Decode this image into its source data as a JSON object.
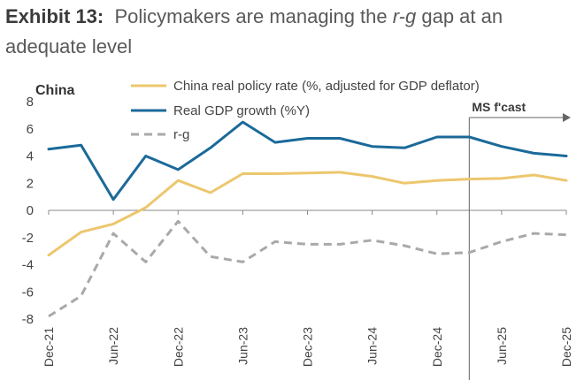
{
  "title": {
    "exhibit": "Exhibit 13:",
    "text_before": "Policymakers are managing the ",
    "term": "r-g",
    "text_after": " gap at an adequate level"
  },
  "colors": {
    "policy_rate": "#ecc76e",
    "gdp_growth": "#1b6a9a",
    "r_g": "#a9a9a9",
    "axis": "#888888",
    "forecast_line": "#666666"
  },
  "chart_data": {
    "type": "line",
    "panel_label": "China",
    "forecast_label": "MS f'cast",
    "forecast_start": "Mar-25",
    "ylim": [
      -8,
      8
    ],
    "yticks": [
      8,
      6,
      4,
      2,
      0,
      -2,
      -4,
      -6,
      -8
    ],
    "x": [
      "Dec-21",
      "Mar-22",
      "Jun-22",
      "Sep-22",
      "Dec-22",
      "Mar-23",
      "Jun-23",
      "Sep-23",
      "Dec-23",
      "Mar-24",
      "Jun-24",
      "Sep-24",
      "Dec-24",
      "Mar-25",
      "Jun-25",
      "Sep-25",
      "Dec-25"
    ],
    "xtick_labels": [
      "Dec-21",
      "Jun-22",
      "Dec-22",
      "Jun-23",
      "Dec-23",
      "Jun-24",
      "Dec-24",
      "Jun-25",
      "Dec-25"
    ],
    "series": [
      {
        "key": "policy_rate",
        "name": "China real policy rate (%, adjusted for GDP deflator)",
        "style": "solid",
        "values": [
          -3.3,
          -1.6,
          -1.0,
          0.2,
          2.2,
          1.3,
          2.7,
          2.7,
          2.75,
          2.8,
          2.5,
          2.0,
          2.2,
          2.3,
          2.35,
          2.6,
          2.2
        ]
      },
      {
        "key": "gdp_growth",
        "name": "Real GDP growth (%Y)",
        "style": "solid",
        "values": [
          4.5,
          4.8,
          0.8,
          4.0,
          3.0,
          4.6,
          6.5,
          5.0,
          5.3,
          5.3,
          4.7,
          4.6,
          5.4,
          5.4,
          4.7,
          4.2,
          4.0
        ]
      },
      {
        "key": "r_g",
        "name": "r-g",
        "style": "dashed",
        "values": [
          -7.8,
          -6.3,
          -1.7,
          -3.8,
          -0.8,
          -3.4,
          -3.8,
          -2.3,
          -2.5,
          -2.5,
          -2.2,
          -2.6,
          -3.2,
          -3.1,
          -2.3,
          -1.7,
          -1.8
        ]
      }
    ]
  }
}
